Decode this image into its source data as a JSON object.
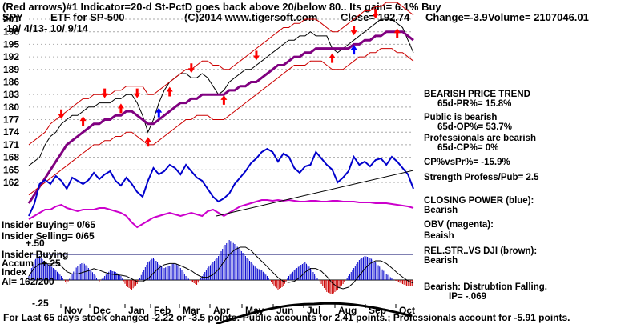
{
  "header": {
    "line1": "(Red arrows)#1 Indicator=20-d St-PctD goes back above 20/below 80.. Its gain= 6.1% Buy",
    "symbol": "SPY",
    "etf_label": "ETF for SP-500",
    "copyright": "(C)2014 www.tigersoft.com",
    "close": "Close= 192.74",
    "change": "Change=-3.9",
    "volume": "Volume= 2107046.01",
    "date_range": "10/ 4/13- 10/ 9/14"
  },
  "right_panel": {
    "items": [
      {
        "text": "BEARISH PRICE TREND",
        "color": "#000000"
      },
      {
        "text": "65d-PR%= 15.8%",
        "color": "#000000"
      },
      {
        "text": "Public is bearish",
        "color": "#000000"
      },
      {
        "text": "65d-OP%= 53.7%",
        "color": "#000000"
      },
      {
        "text": "Professionals are bearish",
        "color": "#000000"
      },
      {
        "text": "65d-CP%= 0%",
        "color": "#000000"
      },
      {
        "text": "CP%vsPr%= -15.9%",
        "color": "#000000"
      },
      {
        "text": "Strength Profess/Pub= 2.5",
        "color": "#000000"
      },
      {
        "text": "CLOSING POWER (blue):",
        "color": "#000000"
      },
      {
        "text": "Bearish",
        "color": "#000000"
      },
      {
        "text": "OBV (magenta):",
        "color": "#000000"
      },
      {
        "text": "Beaish",
        "color": "#000000"
      },
      {
        "text": "REL.STR..VS DJI (brown):",
        "color": "#000000"
      },
      {
        "text": "Bearish",
        "color": "#000000"
      },
      {
        "text": "Bearish: Distrubtion Falling.",
        "color": "#000000"
      },
      {
        "text": "IP= -.069",
        "color": "#000000"
      }
    ]
  },
  "left_labels": {
    "insider_buying": "Insider Buying= 0/65",
    "insider_selling": "Insider Selling= 0/65",
    "plus50": "+.50",
    "insider_buying2": "Insider Buying",
    "accum": "Accum",
    "plus25": "+.25",
    "index": "Index",
    "ai": "AI= 162/200",
    "minus25": "-.25"
  },
  "footer": "For Last 65 days stock changed -2.22 or -3.5 points: Public accounts for 2.41 points.; Professionals account for -5.91 points.",
  "chart_data": {
    "type": "line",
    "price_axis": {
      "ticks": [
        "201",
        "198",
        "195",
        "192",
        "189",
        "186",
        "183",
        "180",
        "177",
        "174",
        "171",
        "168",
        "165",
        "162"
      ],
      "range": [
        162,
        201
      ]
    },
    "months": [
      "Nov",
      "Dec",
      "Jan",
      "Feb",
      "Mar",
      "Apr",
      "May",
      "Jun",
      "Jul",
      "Aug",
      "Sep",
      "Oct"
    ],
    "series": [
      {
        "key": "price",
        "color": "#000000",
        "values": [
          166,
          167,
          168,
          171,
          173,
          174,
          176,
          177,
          178,
          178,
          179,
          180,
          180,
          181,
          181,
          181,
          182,
          182,
          183,
          183,
          181,
          178,
          174,
          177,
          181,
          184,
          186,
          187,
          188,
          188,
          187,
          187,
          188,
          187,
          185,
          183,
          184,
          186,
          187,
          188,
          189,
          189,
          190,
          191,
          192,
          193,
          194,
          195,
          196,
          196,
          197,
          197,
          198,
          197,
          197,
          197,
          194,
          193,
          194,
          195,
          196,
          197,
          198,
          199,
          200,
          201,
          201,
          201,
          200,
          199,
          196,
          193
        ]
      },
      {
        "key": "ma50",
        "color": "#800080",
        "values": [
          157,
          159,
          161,
          163,
          165,
          167,
          169,
          171,
          172,
          173,
          174,
          175,
          176,
          176,
          177,
          177,
          178,
          178,
          179,
          179,
          178,
          177,
          176,
          176,
          177,
          178,
          179,
          180,
          181,
          181,
          182,
          182,
          183,
          183,
          183,
          183,
          183,
          184,
          184,
          185,
          185,
          186,
          186,
          187,
          188,
          189,
          190,
          190,
          191,
          192,
          192,
          193,
          193,
          194,
          194,
          194,
          194,
          194,
          194,
          194,
          195,
          195,
          196,
          196,
          197,
          197,
          198,
          198,
          198,
          198,
          197,
          196
        ]
      },
      {
        "key": "upper_band",
        "color": "#cc0000",
        "values": [
          171,
          172,
          173,
          174,
          176,
          177,
          178,
          179,
          180,
          181,
          182,
          182,
          183,
          183,
          183,
          183,
          184,
          184,
          185,
          185,
          185,
          185,
          183,
          183,
          184,
          185,
          186,
          187,
          188,
          189,
          189,
          190,
          191,
          191,
          190,
          190,
          189,
          189,
          190,
          191,
          192,
          193,
          194,
          195,
          196,
          197,
          198,
          199,
          199,
          200,
          200,
          201,
          201,
          201,
          200,
          199,
          198,
          198,
          199,
          200,
          201,
          202,
          203,
          203,
          204,
          204,
          205,
          205,
          205,
          204,
          203,
          202
        ]
      },
      {
        "key": "lower_band",
        "color": "#cc0000",
        "values": [
          159,
          160,
          161,
          162,
          163,
          164,
          165,
          166,
          167,
          168,
          169,
          170,
          171,
          171,
          172,
          172,
          173,
          173,
          174,
          174,
          173,
          172,
          171,
          171,
          172,
          173,
          174,
          175,
          176,
          177,
          177,
          178,
          178,
          178,
          177,
          177,
          177,
          178,
          179,
          180,
          181,
          182,
          183,
          184,
          185,
          186,
          187,
          188,
          189,
          190,
          190,
          190,
          191,
          191,
          191,
          190,
          189,
          189,
          189,
          190,
          191,
          192,
          192,
          193,
          193,
          194,
          194,
          194,
          193,
          193,
          192,
          191
        ]
      },
      {
        "key": "closing_power",
        "color": "#0000cc",
        "values": [
          270,
          255,
          230,
          225,
          230,
          220,
          226,
          236,
          222,
          226,
          230,
          225,
          216,
          224,
          218,
          214,
          226,
          232,
          222,
          230,
          240,
          246,
          226,
          210,
          218,
          214,
          206,
          210,
          218,
          206,
          214,
          222,
          226,
          236,
          246,
          252,
          248,
          242,
          230,
          222,
          214,
          204,
          198,
          190,
          186,
          190,
          202,
          192,
          196,
          210,
          216,
          208,
          206,
          190,
          198,
          206,
          212,
          228,
          222,
          214,
          196,
          206,
          202,
          208,
          200,
          198,
          206,
          196,
          202,
          210,
          218,
          236
        ]
      },
      {
        "key": "obv",
        "color": "#cc00cc",
        "values": [
          274,
          270,
          266,
          262,
          262,
          258,
          256,
          260,
          262,
          264,
          262,
          262,
          262,
          260,
          260,
          262,
          264,
          266,
          270,
          278,
          284,
          280,
          276,
          272,
          270,
          268,
          266,
          268,
          270,
          268,
          266,
          268,
          270,
          264,
          262,
          266,
          270,
          266,
          262,
          258,
          256,
          254,
          252,
          250,
          250,
          251,
          250,
          251,
          250,
          251,
          252,
          252,
          251,
          251,
          252,
          252,
          251,
          251,
          252,
          252,
          252,
          253,
          253,
          253,
          254,
          254,
          254,
          255,
          256,
          257,
          258,
          260
        ]
      }
    ],
    "accum_index": {
      "zero_level": 0,
      "values": [
        0.05,
        0.25,
        0.3,
        0.22,
        0.18,
        0.12,
        0.05,
        -0.05,
        0.08,
        0.18,
        0.22,
        0.15,
        0.08,
        -0.02,
        0.05,
        0.12,
        0.1,
        0.05,
        -0.08,
        -0.12,
        -0.05,
        0.1,
        0.22,
        0.28,
        0.2,
        0.15,
        0.18,
        0.22,
        0.15,
        0.05,
        -0.02,
        -0.06,
        0.05,
        0.15,
        0.22,
        0.3,
        0.42,
        0.5,
        0.45,
        0.38,
        0.3,
        0.22,
        0.15,
        0.12,
        0.05,
        -0.05,
        -0.12,
        -0.08,
        0.05,
        0.12,
        0.18,
        0.22,
        0.15,
        0.05,
        -0.05,
        -0.15,
        -0.18,
        -0.12,
        -0.05,
        0.05,
        0.15,
        0.25,
        0.3,
        0.28,
        0.22,
        0.15,
        0.08,
        0.02,
        -0.02,
        -0.05,
        -0.08,
        -0.069
      ]
    },
    "arrows": [
      {
        "dir": "down",
        "color": "#ff0000",
        "i": 6
      },
      {
        "dir": "up",
        "color": "#ff0000",
        "i": 10
      },
      {
        "dir": "down",
        "color": "#ff0000",
        "i": 14
      },
      {
        "dir": "up",
        "color": "#ff0000",
        "i": 17
      },
      {
        "dir": "down",
        "color": "#ff0000",
        "i": 20
      },
      {
        "dir": "up",
        "color": "#ff0000",
        "i": 22
      },
      {
        "dir": "up",
        "color": "#0000ff",
        "i": 24
      },
      {
        "dir": "up",
        "color": "#ff0000",
        "i": 26
      },
      {
        "dir": "down",
        "color": "#ff0000",
        "i": 30
      },
      {
        "dir": "up",
        "color": "#ff0000",
        "i": 36
      },
      {
        "dir": "down",
        "color": "#ff0000",
        "i": 42
      },
      {
        "dir": "up",
        "color": "#ff0000",
        "i": 56
      },
      {
        "dir": "up",
        "color": "#0000ff",
        "i": 60
      },
      {
        "dir": "down",
        "color": "#ff0000",
        "i": 60
      },
      {
        "dir": "down",
        "color": "#ff0000",
        "i": 64
      },
      {
        "dir": "up",
        "color": "#ff0000",
        "i": 68
      }
    ],
    "grid": true
  }
}
